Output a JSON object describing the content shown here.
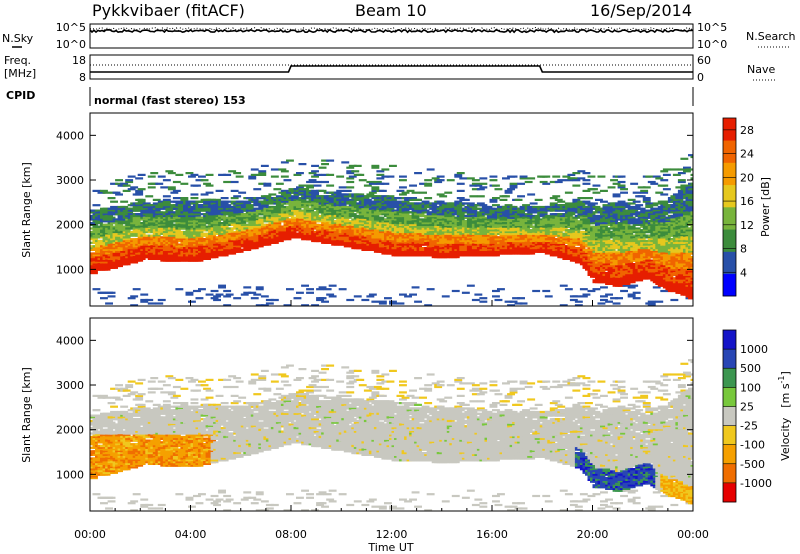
{
  "header": {
    "station": "Pykkvibaer (fitACF)",
    "beam": "Beam 10",
    "date": "16/Sep/2014"
  },
  "side_labels": {
    "nsky": "N.Sky",
    "nsearch": "N.Search",
    "freq": "Freq.",
    "freq_unit": "[MHz]",
    "nave": "Nave",
    "cpid": "CPID"
  },
  "noise_axis": {
    "left_top": "10^5",
    "left_bottom": "10^0",
    "right_top": "10^5",
    "right_bottom": "10^0"
  },
  "freq_axis": {
    "left_top": "18",
    "left_bottom": "8",
    "right_top": "60",
    "right_bottom": "0"
  },
  "cpid_text": "normal (fast stereo) 153",
  "colors": {
    "power_scale": [
      "#0000ff",
      "#2850a8",
      "#3c8c3c",
      "#78b43c",
      "#e6c81e",
      "#f59b00",
      "#f06400",
      "#e61e00"
    ],
    "velocity_scale": [
      "#e60000",
      "#f06e00",
      "#f5a000",
      "#f0c81e",
      "#c8c8c0",
      "#78c83c",
      "#3c9650",
      "#2846b4",
      "#1414c8"
    ]
  },
  "chart_data": [
    {
      "type": "heatmap",
      "title": "",
      "quantity": "Power",
      "ylabel": "Slant Range [km]",
      "xlabel": "",
      "ylim": [
        180,
        4500
      ],
      "y_ticks": [
        "1000",
        "2000",
        "3000",
        "4000"
      ],
      "colorbar": {
        "label": "Power [dB]",
        "ticks": [
          "4",
          "8",
          "12",
          "16",
          "20",
          "24",
          "28"
        ],
        "range": [
          0,
          30
        ]
      },
      "bands": [
        {
          "name": "ionospheric scatter lower edge",
          "x_hours": [
            0,
            2,
            4,
            6,
            8,
            10,
            12,
            14,
            16,
            18,
            19.5,
            20,
            21,
            22,
            23,
            24
          ],
          "range_km": [
            900,
            1200,
            1150,
            1400,
            1700,
            1500,
            1300,
            1250,
            1300,
            1350,
            1100,
            700,
            600,
            800,
            500,
            300
          ]
        },
        {
          "name": "ionospheric scatter upper edge",
          "x_hours": [
            0,
            2,
            4,
            6,
            8,
            10,
            12,
            14,
            16,
            18,
            19.5,
            20,
            21,
            22,
            23,
            24
          ],
          "range_km": [
            2300,
            2500,
            2500,
            2500,
            2800,
            2700,
            2600,
            2500,
            2400,
            2400,
            2500,
            2400,
            2500,
            2400,
            2600,
            3000
          ]
        }
      ]
    },
    {
      "type": "heatmap",
      "title": "",
      "quantity": "Velocity",
      "ylabel": "Slant Range [km]",
      "xlabel": "Time UT",
      "ylim": [
        180,
        4500
      ],
      "x_ticks": [
        "00:00",
        "04:00",
        "08:00",
        "12:00",
        "16:00",
        "20:00",
        "00:00"
      ],
      "x_hours": [
        0,
        4,
        8,
        12,
        16,
        20,
        24
      ],
      "y_ticks": [
        "1000",
        "2000",
        "3000",
        "4000"
      ],
      "colorbar": {
        "label": "Velocity [m s-1]",
        "label_main": "Velocity",
        "label_unit": "[m s",
        "label_exp": "-1",
        "label_close": "]",
        "ticks": [
          "-1000",
          "-500",
          "-100",
          "-25",
          "25",
          "100",
          "500",
          "1000"
        ]
      }
    }
  ]
}
